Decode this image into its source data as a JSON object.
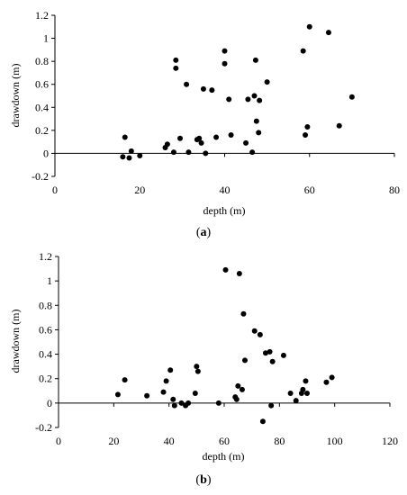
{
  "chart_data": [
    {
      "type": "scatter",
      "caption_letter": "a",
      "xlabel": "depth (m)",
      "ylabel": "drawdown (m)",
      "xlim": [
        0,
        80
      ],
      "ylim": [
        -0.2,
        1.2
      ],
      "x_ticks": [
        "0",
        "20",
        "40",
        "60",
        "80"
      ],
      "y_ticks": [
        "-0.2",
        "0",
        "0.2",
        "0.4",
        "0.6",
        "0.8",
        "1",
        "1.2"
      ],
      "grid": false,
      "marker_color": "#000000",
      "points": [
        {
          "x": 16,
          "y": -0.03
        },
        {
          "x": 16.5,
          "y": 0.14
        },
        {
          "x": 17.5,
          "y": -0.04
        },
        {
          "x": 18,
          "y": 0.02
        },
        {
          "x": 20,
          "y": -0.02
        },
        {
          "x": 26,
          "y": 0.05
        },
        {
          "x": 26.5,
          "y": 0.08
        },
        {
          "x": 28,
          "y": 0.01
        },
        {
          "x": 28.5,
          "y": 0.81
        },
        {
          "x": 28.5,
          "y": 0.74
        },
        {
          "x": 29.5,
          "y": 0.13
        },
        {
          "x": 31,
          "y": 0.6
        },
        {
          "x": 31.5,
          "y": 0.01
        },
        {
          "x": 33.5,
          "y": 0.12
        },
        {
          "x": 34,
          "y": 0.13
        },
        {
          "x": 34.5,
          "y": 0.09
        },
        {
          "x": 35,
          "y": 0.56
        },
        {
          "x": 35.5,
          "y": 0.0
        },
        {
          "x": 37,
          "y": 0.55
        },
        {
          "x": 38,
          "y": 0.14
        },
        {
          "x": 40,
          "y": 0.89
        },
        {
          "x": 40,
          "y": 0.78
        },
        {
          "x": 41,
          "y": 0.47
        },
        {
          "x": 41.5,
          "y": 0.16
        },
        {
          "x": 45,
          "y": 0.09
        },
        {
          "x": 45.5,
          "y": 0.47
        },
        {
          "x": 46.5,
          "y": 0.01
        },
        {
          "x": 47,
          "y": 0.5
        },
        {
          "x": 47.3,
          "y": 0.81
        },
        {
          "x": 47.5,
          "y": 0.28
        },
        {
          "x": 48,
          "y": 0.18
        },
        {
          "x": 48.2,
          "y": 0.46
        },
        {
          "x": 50,
          "y": 0.62
        },
        {
          "x": 58.5,
          "y": 0.89
        },
        {
          "x": 59,
          "y": 0.16
        },
        {
          "x": 59.5,
          "y": 0.23
        },
        {
          "x": 60,
          "y": 1.1
        },
        {
          "x": 64.5,
          "y": 1.05
        },
        {
          "x": 67,
          "y": 0.24
        },
        {
          "x": 70,
          "y": 0.49
        }
      ]
    },
    {
      "type": "scatter",
      "caption_letter": "b",
      "xlabel": "depth (m)",
      "ylabel": "drawdown (m)",
      "xlim": [
        0,
        120
      ],
      "ylim": [
        -0.2,
        1.2
      ],
      "x_ticks": [
        "0",
        "20",
        "40",
        "60",
        "80",
        "100",
        "120"
      ],
      "y_ticks": [
        "-0.2",
        "0",
        "0.2",
        "0.4",
        "0.6",
        "0.8",
        "1",
        "1.2"
      ],
      "grid": false,
      "marker_color": "#000000",
      "points": [
        {
          "x": 21.5,
          "y": 0.07
        },
        {
          "x": 24,
          "y": 0.19
        },
        {
          "x": 32,
          "y": 0.06
        },
        {
          "x": 38,
          "y": 0.09
        },
        {
          "x": 39,
          "y": 0.18
        },
        {
          "x": 40.5,
          "y": 0.27
        },
        {
          "x": 41.5,
          "y": 0.03
        },
        {
          "x": 42,
          "y": -0.02
        },
        {
          "x": 44.5,
          "y": 0.0
        },
        {
          "x": 46,
          "y": -0.02
        },
        {
          "x": 47,
          "y": 0.0
        },
        {
          "x": 49.5,
          "y": 0.08
        },
        {
          "x": 50,
          "y": 0.3
        },
        {
          "x": 50.5,
          "y": 0.26
        },
        {
          "x": 58,
          "y": 0.0
        },
        {
          "x": 60.5,
          "y": 1.09
        },
        {
          "x": 64,
          "y": 0.05
        },
        {
          "x": 64.5,
          "y": 0.03
        },
        {
          "x": 65,
          "y": 0.14
        },
        {
          "x": 65.5,
          "y": 1.06
        },
        {
          "x": 66.5,
          "y": 0.11
        },
        {
          "x": 67,
          "y": 0.73
        },
        {
          "x": 67.5,
          "y": 0.35
        },
        {
          "x": 71,
          "y": 0.59
        },
        {
          "x": 73,
          "y": 0.56
        },
        {
          "x": 74,
          "y": -0.15
        },
        {
          "x": 75,
          "y": 0.41
        },
        {
          "x": 76.5,
          "y": 0.42
        },
        {
          "x": 77,
          "y": -0.02
        },
        {
          "x": 77.5,
          "y": 0.34
        },
        {
          "x": 81.5,
          "y": 0.39
        },
        {
          "x": 84,
          "y": 0.08
        },
        {
          "x": 86,
          "y": 0.02
        },
        {
          "x": 88,
          "y": 0.08
        },
        {
          "x": 88.5,
          "y": 0.11
        },
        {
          "x": 89.5,
          "y": 0.18
        },
        {
          "x": 90,
          "y": 0.08
        },
        {
          "x": 97,
          "y": 0.17
        },
        {
          "x": 99,
          "y": 0.21
        }
      ]
    }
  ]
}
